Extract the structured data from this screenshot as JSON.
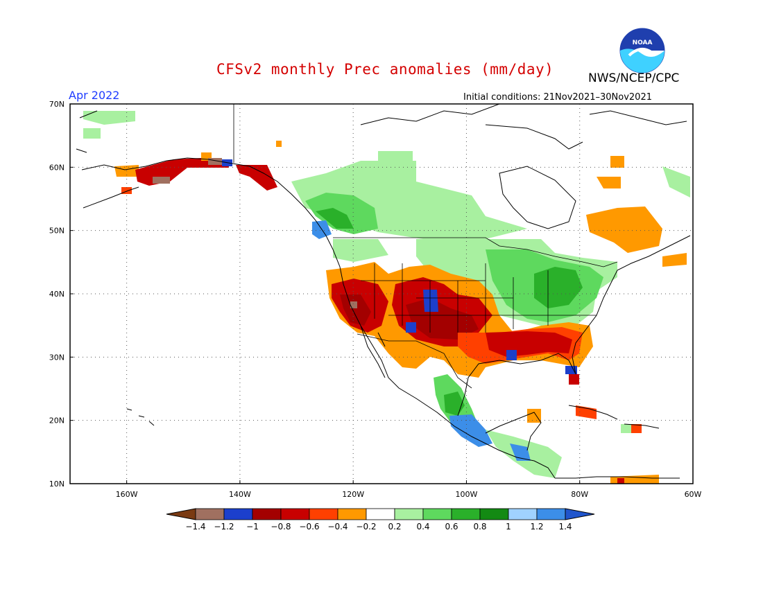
{
  "header": {
    "title": "CFSv2 monthly Prec anomalies (mm/day)",
    "agency": "NWS/NCEP/CPC",
    "month": "Apr 2022",
    "initial_conditions": "Initial conditions: 21Nov2021–30Nov2021",
    "logo_text": "NOAA"
  },
  "axes": {
    "lat_labels": [
      "70N",
      "60N",
      "50N",
      "40N",
      "30N",
      "20N",
      "10N"
    ],
    "lon_labels": [
      "160W",
      "140W",
      "120W",
      "100W",
      "80W",
      "60W"
    ]
  },
  "colorbar": {
    "ticks": [
      "−1.4",
      "−1.2",
      "−1",
      "−0.8",
      "−0.6",
      "−0.4",
      "−0.2",
      "0.2",
      "0.4",
      "0.6",
      "0.8",
      "1",
      "1.2",
      "1.4"
    ],
    "colors": [
      "#7a3a12",
      "#a07060",
      "#1c3fcc",
      "#a30000",
      "#c80000",
      "#ff4000",
      "#ff9900",
      "#ffffff",
      "#a8f0a0",
      "#5ed95e",
      "#2ab02a",
      "#138a13",
      "#a0d2ff",
      "#3c8ee8",
      "#2055cc"
    ]
  },
  "colors": {
    "brown": "#7a3a12",
    "brown_light": "#a07060",
    "blue_dark": "#1c3fcc",
    "red_dark": "#a30000",
    "red": "#c80000",
    "orange_red": "#ff4000",
    "orange": "#ff9900",
    "green_light": "#a8f0a0",
    "green": "#5ed95e",
    "green_mid": "#2ab02a",
    "green_dark": "#138a13",
    "blue_light": "#a0d2ff",
    "blue": "#3c8ee8",
    "title_red": "#d40000",
    "month_blue": "#1e3cff"
  }
}
